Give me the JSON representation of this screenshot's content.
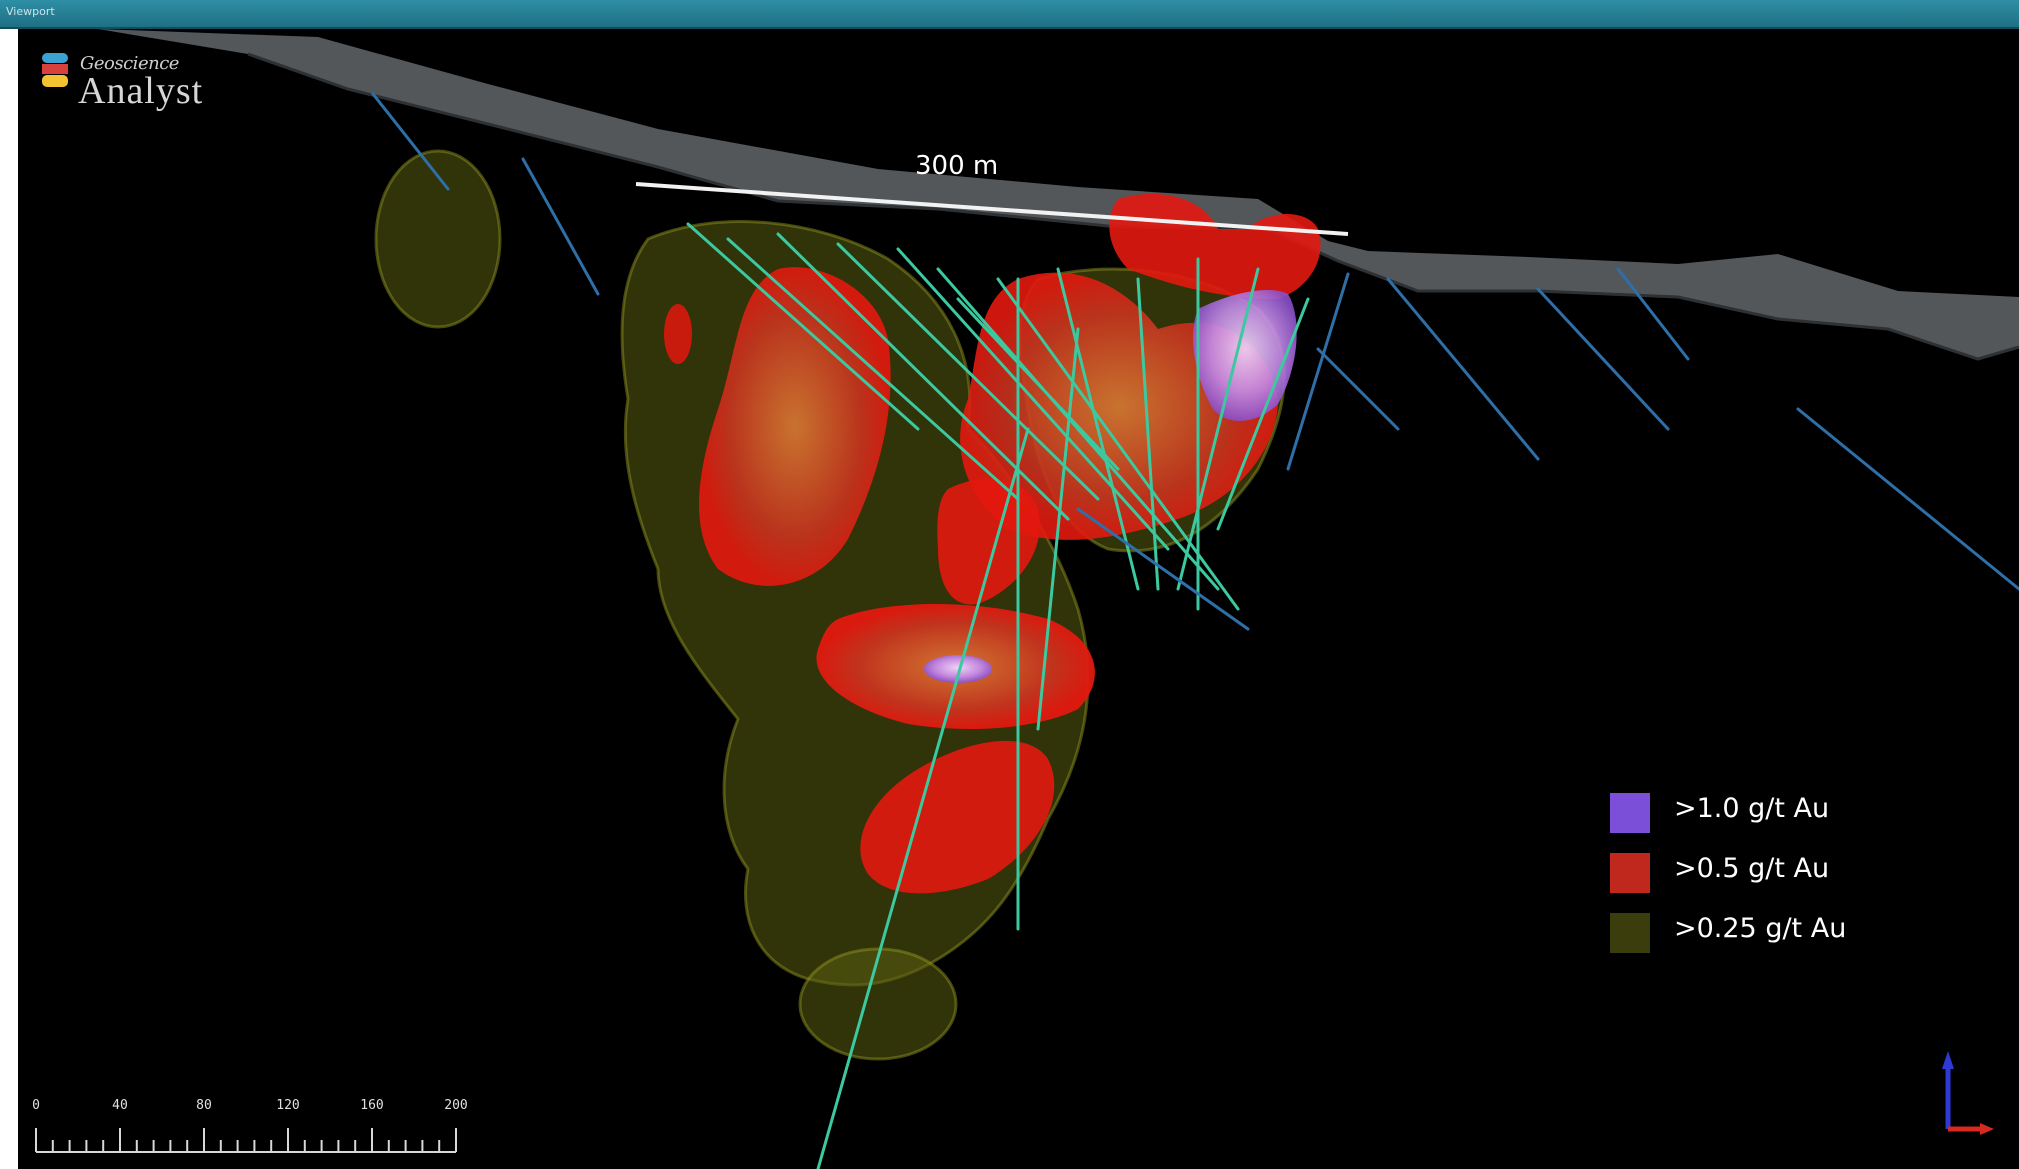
{
  "window": {
    "title": "Viewport"
  },
  "branding": {
    "name_top": "Geoscience",
    "name_main": "Analyst"
  },
  "scene": {
    "scale_label": "300 m",
    "drillhole_color": "#3cc9a0"
  },
  "legend": [
    {
      "label": ">1.0 g/t Au",
      "color": "#7b4fd8"
    },
    {
      "label": ">0.5 g/t Au",
      "color": "#c0281e"
    },
    {
      "label": ">0.25 g/t Au",
      "color": "#3b3d0c"
    }
  ],
  "scale_bar": {
    "ticks": [
      "0",
      "40",
      "80",
      "120",
      "160",
      "200"
    ]
  }
}
